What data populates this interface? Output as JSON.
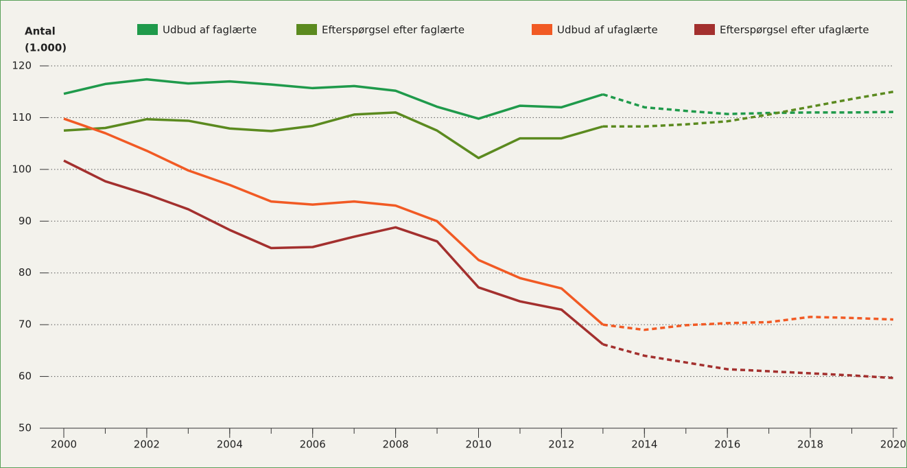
{
  "chart_data": {
    "type": "line",
    "ylabel": [
      "Antal",
      "(1.000)"
    ],
    "x": [
      2000,
      2001,
      2002,
      2003,
      2004,
      2005,
      2006,
      2007,
      2008,
      2009,
      2010,
      2011,
      2012,
      2013,
      2014,
      2015,
      2016,
      2017,
      2018,
      2019,
      2020
    ],
    "xlim": [
      2000,
      2020
    ],
    "xticks": [
      2000,
      2002,
      2004,
      2006,
      2008,
      2010,
      2012,
      2014,
      2016,
      2018,
      2020
    ],
    "ylim": [
      50,
      120
    ],
    "yticks": [
      50,
      60,
      70,
      80,
      90,
      100,
      110,
      120
    ],
    "grid": true,
    "dashed_from": 2013,
    "series": [
      {
        "name": "Udbud af faglærte",
        "color": "#1f9a4b",
        "values": [
          114.6,
          116.5,
          117.4,
          116.6,
          117.0,
          116.4,
          115.7,
          116.1,
          115.2,
          112.1,
          109.8,
          112.3,
          112.0,
          114.5,
          112.0,
          111.3,
          110.7,
          110.9,
          111.0,
          111.0,
          111.1
        ]
      },
      {
        "name": "Efterspørgsel efter faglærte",
        "color": "#5b8a1f",
        "values": [
          107.5,
          108.0,
          109.7,
          109.4,
          107.9,
          107.4,
          108.4,
          110.6,
          111.0,
          107.5,
          102.2,
          106.0,
          106.0,
          108.3,
          108.3,
          108.7,
          109.3,
          110.6,
          112.1,
          113.6,
          115.0
        ]
      },
      {
        "name": "Udbud af ufaglærte",
        "color": "#f15a24",
        "values": [
          109.8,
          107.0,
          103.6,
          99.8,
          97.0,
          93.8,
          93.2,
          93.8,
          93.0,
          90.0,
          82.5,
          79.0,
          77.0,
          70.0,
          69.0,
          69.9,
          70.3,
          70.5,
          71.5,
          71.3,
          71.0
        ]
      },
      {
        "name": "Efterspørgsel efter ufaglærte",
        "color": "#a3302e",
        "values": [
          101.7,
          97.7,
          95.2,
          92.3,
          88.3,
          84.8,
          85.0,
          87.0,
          88.8,
          86.1,
          77.2,
          74.5,
          72.9,
          66.2,
          64.0,
          62.7,
          61.4,
          61.0,
          60.6,
          60.2,
          59.7
        ]
      }
    ]
  }
}
